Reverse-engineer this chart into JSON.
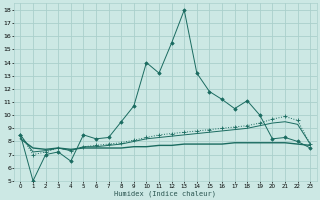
{
  "title": "",
  "xlabel": "Humidex (Indice chaleur)",
  "bg_color": "#cce8e4",
  "grid_color": "#aad0cc",
  "line_color": "#1a6b60",
  "xlim": [
    -0.5,
    23.5
  ],
  "ylim": [
    5,
    18.5
  ],
  "xticks": [
    0,
    1,
    2,
    3,
    4,
    5,
    6,
    7,
    8,
    9,
    10,
    11,
    12,
    13,
    14,
    15,
    16,
    17,
    18,
    19,
    20,
    21,
    22,
    23
  ],
  "yticks": [
    5,
    6,
    7,
    8,
    9,
    10,
    11,
    12,
    13,
    14,
    15,
    16,
    17,
    18
  ],
  "line1_x": [
    0,
    1,
    2,
    3,
    4,
    5,
    6,
    7,
    8,
    9,
    10,
    11,
    12,
    13,
    14,
    15,
    16,
    17,
    18,
    19,
    20,
    21,
    22,
    23
  ],
  "line1_y": [
    8.5,
    5.0,
    7.0,
    7.2,
    6.5,
    8.5,
    8.2,
    8.3,
    9.5,
    10.7,
    14.0,
    13.2,
    15.5,
    18.0,
    13.2,
    11.8,
    11.2,
    10.5,
    11.1,
    10.0,
    8.2,
    8.3,
    8.0,
    7.5
  ],
  "line2_x": [
    0,
    1,
    2,
    3,
    4,
    5,
    6,
    7,
    8,
    9,
    10,
    11,
    12,
    13,
    14,
    15,
    16,
    17,
    18,
    19,
    20,
    21,
    22,
    23
  ],
  "line2_y": [
    8.2,
    7.5,
    7.4,
    7.5,
    7.4,
    7.5,
    7.5,
    7.5,
    7.5,
    7.6,
    7.6,
    7.7,
    7.7,
    7.8,
    7.8,
    7.8,
    7.8,
    7.9,
    7.9,
    7.9,
    7.9,
    7.9,
    7.8,
    7.7
  ],
  "line3_x": [
    0,
    1,
    2,
    3,
    4,
    5,
    6,
    7,
    8,
    9,
    10,
    11,
    12,
    13,
    14,
    15,
    16,
    17,
    18,
    19,
    20,
    21,
    22,
    23
  ],
  "line3_y": [
    8.5,
    7.2,
    7.3,
    7.5,
    7.3,
    7.6,
    7.6,
    7.7,
    7.8,
    8.0,
    8.2,
    8.3,
    8.4,
    8.5,
    8.6,
    8.7,
    8.8,
    8.9,
    9.0,
    9.2,
    9.4,
    9.5,
    9.3,
    7.8
  ],
  "line4_x": [
    0,
    1,
    2,
    3,
    4,
    5,
    6,
    7,
    8,
    9,
    10,
    11,
    12,
    13,
    14,
    15,
    16,
    17,
    18,
    19,
    20,
    21,
    22,
    23
  ],
  "line4_y": [
    8.5,
    7.0,
    7.2,
    7.5,
    7.3,
    7.6,
    7.7,
    7.8,
    7.9,
    8.1,
    8.3,
    8.5,
    8.6,
    8.7,
    8.8,
    8.9,
    9.0,
    9.1,
    9.2,
    9.4,
    9.7,
    9.9,
    9.6,
    7.8
  ]
}
